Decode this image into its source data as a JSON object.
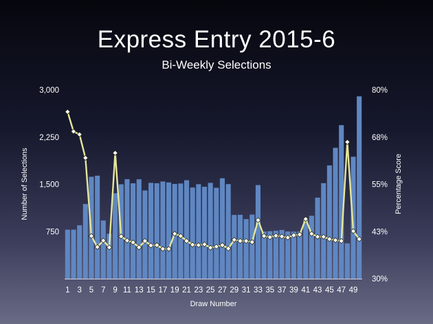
{
  "chart_data": {
    "type": "bar+line",
    "title": "Express Entry 2015-6",
    "subtitle": "Bi-Weekly Selections",
    "xlabel": "Draw Number",
    "ylabel_left": "Number of Selections",
    "ylabel_right": "Percentage Score",
    "ylim_left": [
      0,
      3000
    ],
    "ylim_right": [
      30,
      80
    ],
    "left_ticks": [
      "3,000",
      "2,250",
      "1,500",
      "750"
    ],
    "right_ticks": [
      "80%",
      "68%",
      "55%",
      "43%",
      "30%"
    ],
    "x_tick_labels": [
      "1",
      "3",
      "5",
      "7",
      "9",
      "11",
      "13",
      "15",
      "17",
      "19",
      "21",
      "23",
      "25",
      "27",
      "29",
      "31",
      "33",
      "35",
      "37",
      "39",
      "41",
      "43",
      "45",
      "47",
      "49"
    ],
    "draws": [
      1,
      2,
      3,
      4,
      5,
      6,
      7,
      8,
      9,
      10,
      11,
      12,
      13,
      14,
      15,
      16,
      17,
      18,
      19,
      20,
      21,
      22,
      23,
      24,
      25,
      26,
      27,
      28,
      29,
      30,
      31,
      32,
      33,
      34,
      35,
      36,
      37,
      38,
      39,
      40,
      41,
      42,
      43,
      44,
      45,
      46,
      47,
      48,
      49,
      50
    ],
    "series": [
      {
        "type": "bar",
        "axis": "left",
        "values": [
          779,
          779,
          849,
          1187,
          1620,
          1637,
          925,
          715,
          1358,
          1500,
          1581,
          1516,
          1580,
          1402,
          1523,
          1517,
          1545,
          1530,
          1506,
          1513,
          1565,
          1449,
          1502,
          1461,
          1523,
          1445,
          1596,
          1503,
          1013,
          1015,
          947,
          1019,
          1488,
          750,
          755,
          762,
          775,
          751,
          748,
          750,
          954,
          1000,
          1288,
          1518,
          1800,
          2080,
          2440,
          562,
          1938,
          2898
        ]
      },
      {
        "type": "line",
        "axis": "right",
        "color": "#e6e79a",
        "marker": "diamond",
        "values": [
          74.2,
          69.0,
          68.2,
          62.0,
          41.3,
          38.4,
          40.1,
          38.3,
          63.3,
          41.2,
          40.1,
          39.6,
          38.3,
          40.0,
          38.8,
          38.9,
          37.9,
          37.9,
          41.9,
          41.3,
          40.0,
          39.0,
          38.9,
          39.1,
          38.2,
          38.5,
          38.9,
          38.0,
          40.3,
          40.0,
          40.0,
          39.7,
          45.5,
          41.3,
          41.0,
          41.4,
          41.2,
          40.9,
          41.5,
          41.7,
          45.8,
          41.9,
          41.1,
          41.1,
          40.5,
          40.2,
          40.0,
          66.2,
          42.6,
          40.5
        ]
      }
    ],
    "colors": {
      "bar": "#5f87c2",
      "line": "#e6e79a",
      "marker_fill": "#ffffff",
      "marker_stroke": "#2a2c12"
    }
  }
}
